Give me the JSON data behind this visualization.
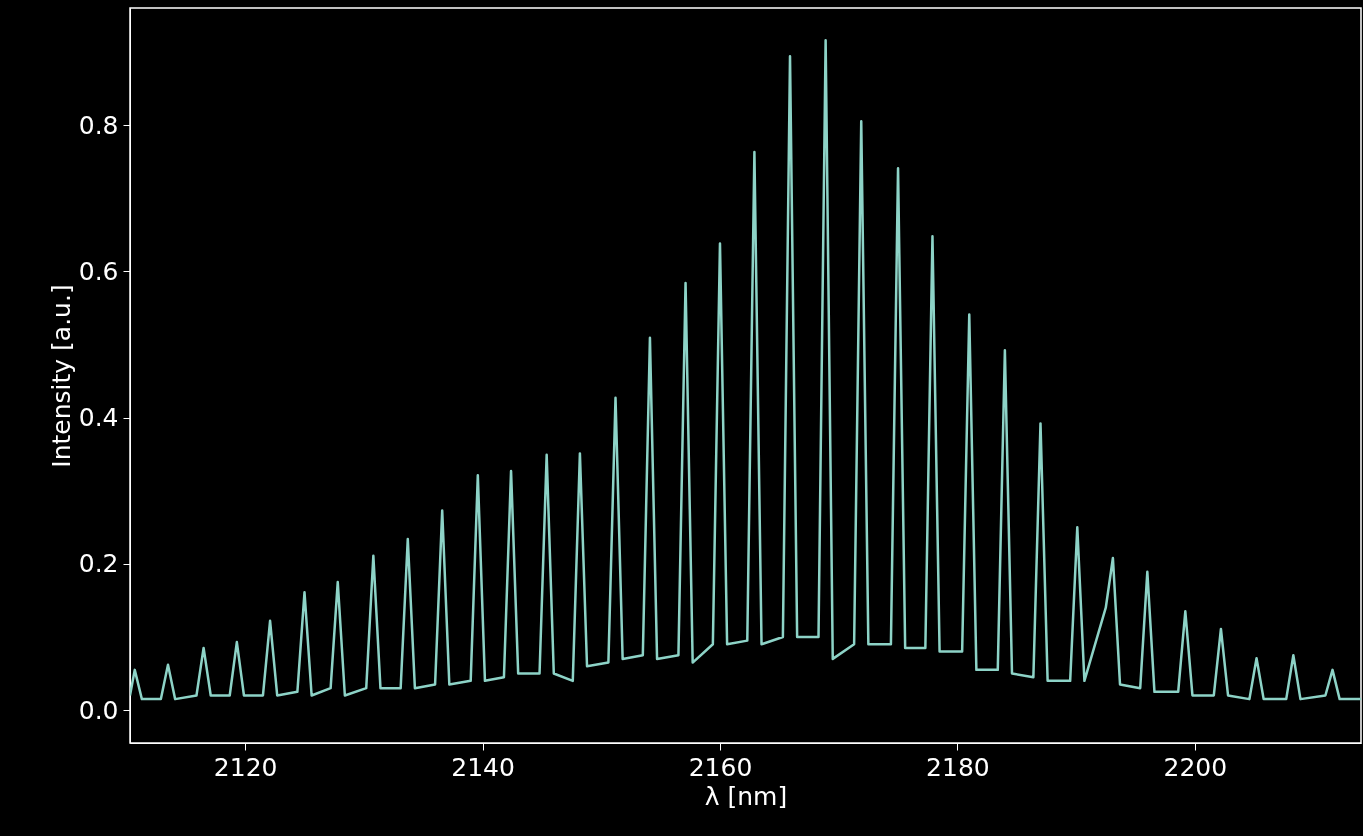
{
  "chart_data": {
    "type": "line",
    "xlabel": "λ [nm]",
    "ylabel": "Intensity [a.u.]",
    "xlim": [
      2110.3,
      2214
    ],
    "ylim": [
      -0.045,
      0.96
    ],
    "xticks": [
      2120,
      2140,
      2160,
      2180,
      2200
    ],
    "yticks": [
      {
        "value": 0,
        "label": "0.0"
      },
      0.2,
      0.4,
      0.6,
      0.8
    ],
    "marker": "none",
    "line_style": "solid",
    "series": [
      {
        "color": "#8dd3c7",
        "x": [
          2110.3,
          2110.7,
          2111.3,
          2112.9,
          2113.5,
          2114.1,
          2115.9,
          2116.5,
          2117.1,
          2118.7,
          2119.3,
          2119.9,
          2121.5,
          2122.1,
          2122.7,
          2124.4,
          2125.0,
          2125.6,
          2127.2,
          2127.8,
          2128.4,
          2130.2,
          2130.8,
          2131.4,
          2133.1,
          2133.7,
          2134.3,
          2136.0,
          2136.6,
          2137.2,
          2139.0,
          2139.6,
          2140.2,
          2141.8,
          2142.4,
          2143.0,
          2144.8,
          2145.4,
          2146.0,
          2147.6,
          2148.2,
          2148.8,
          2150.6,
          2151.2,
          2151.8,
          2153.5,
          2154.1,
          2154.7,
          2156.5,
          2157.1,
          2157.7,
          2159.4,
          2160.0,
          2160.6,
          2162.3,
          2162.9,
          2163.5,
          2165.3,
          2165.9,
          2166.5,
          2168.3,
          2168.9,
          2169.5,
          2171.3,
          2171.9,
          2172.5,
          2174.4,
          2175.0,
          2175.6,
          2177.3,
          2177.9,
          2178.5,
          2180.4,
          2181.0,
          2181.6,
          2183.4,
          2184.0,
          2184.6,
          2186.4,
          2187.0,
          2187.6,
          2189.5,
          2190.1,
          2190.7,
          2192.5,
          2193.1,
          2193.7,
          2195.4,
          2196.0,
          2196.6,
          2198.6,
          2199.2,
          2199.8,
          2201.6,
          2202.2,
          2202.8,
          2204.6,
          2205.2,
          2205.8,
          2207.7,
          2208.3,
          2208.9,
          2211.0,
          2211.6,
          2212.2,
          2214.0
        ],
        "values": [
          0.02,
          0.055,
          0.015,
          0.015,
          0.062,
          0.015,
          0.02,
          0.085,
          0.02,
          0.02,
          0.093,
          0.02,
          0.02,
          0.122,
          0.02,
          0.025,
          0.161,
          0.02,
          0.03,
          0.175,
          0.02,
          0.03,
          0.211,
          0.03,
          0.03,
          0.234,
          0.03,
          0.035,
          0.273,
          0.035,
          0.04,
          0.321,
          0.04,
          0.045,
          0.327,
          0.05,
          0.05,
          0.349,
          0.05,
          0.04,
          0.351,
          0.06,
          0.065,
          0.427,
          0.07,
          0.075,
          0.509,
          0.07,
          0.075,
          0.584,
          0.065,
          0.09,
          0.638,
          0.09,
          0.095,
          0.763,
          0.09,
          0.1,
          0.894,
          0.1,
          0.1,
          0.916,
          0.07,
          0.09,
          0.805,
          0.09,
          0.09,
          0.741,
          0.085,
          0.085,
          0.648,
          0.08,
          0.08,
          0.541,
          0.055,
          0.055,
          0.492,
          0.05,
          0.045,
          0.392,
          0.04,
          0.04,
          0.25,
          0.04,
          0.14,
          0.208,
          0.035,
          0.03,
          0.189,
          0.025,
          0.025,
          0.135,
          0.02,
          0.02,
          0.111,
          0.02,
          0.015,
          0.071,
          0.015,
          0.015,
          0.075,
          0.015,
          0.02,
          0.055,
          0.015,
          0.015
        ]
      }
    ]
  }
}
